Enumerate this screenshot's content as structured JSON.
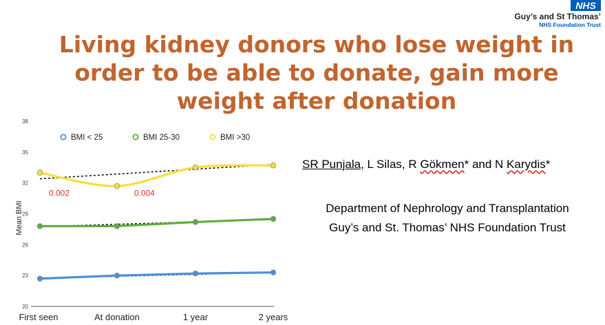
{
  "logo": {
    "badge": "NHS",
    "trust_name": "Guy’s and St Thomas’",
    "trust_sub": "NHS Foundation Trust"
  },
  "title": "Living kidney donors who lose weight in\norder to be able to donate, gain more\nweight after donation",
  "authors": {
    "a1": "SR Punjala",
    "sep1": ", L Silas, R ",
    "a3": "Gökmen",
    "sep2": "* and N ",
    "a4": "Karydis",
    "end": "*"
  },
  "department": {
    "line1": "Department of Nephrology and Transplantation",
    "line2": "Guy’s and St. Thomas’ NHS Foundation Trust"
  },
  "chart_data": {
    "type": "line",
    "title": "",
    "xlabel": "",
    "ylabel": "Mean BMI",
    "categories": [
      "First seen",
      "At donation",
      "1 year",
      "2 years"
    ],
    "ylim": [
      20,
      38
    ],
    "yticks": [
      20,
      23,
      26,
      29,
      32,
      35,
      38
    ],
    "grid": false,
    "legend_position": "top",
    "series": [
      {
        "name": "BMI < 25",
        "color": "#4A90D9",
        "values": [
          22.7,
          23.0,
          23.2,
          23.3
        ],
        "trend": [
          22.75,
          23.3
        ]
      },
      {
        "name": "BMI 25-30",
        "color": "#5DAE3C",
        "values": [
          27.8,
          27.8,
          28.2,
          28.5
        ],
        "trend": [
          27.75,
          28.45
        ]
      },
      {
        "name": "BMI >30",
        "color": "#F5E03A",
        "values": [
          33.0,
          31.7,
          33.5,
          33.7
        ],
        "trend": [
          32.4,
          33.8
        ]
      }
    ],
    "annotations": [
      {
        "text": "0.002",
        "x": 0.25,
        "y": 31.0,
        "color": "#e03020"
      },
      {
        "text": "0.004",
        "x": 1.35,
        "y": 31.0,
        "color": "#e03020"
      }
    ]
  }
}
